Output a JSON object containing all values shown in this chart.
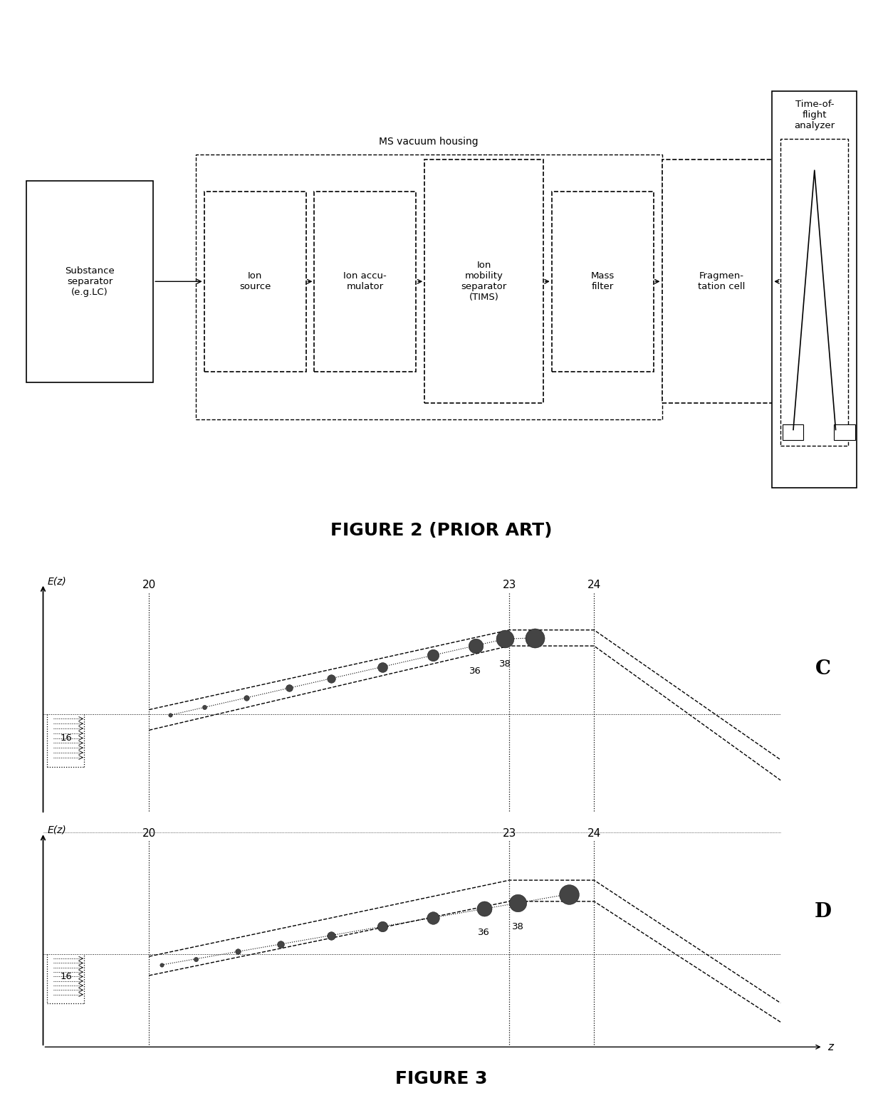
{
  "fig2_title": "FIGURE 2 (PRIOR ART)",
  "fig3_title": "FIGURE 3",
  "ms_housing_label": "MS vacuum housing",
  "label_C": "C",
  "label_D": "D",
  "label_16": "16",
  "label_20": "20",
  "label_23": "23",
  "label_24": "24",
  "label_36": "36",
  "label_38": "38",
  "ez_label": "E(z)",
  "z_label": "z"
}
